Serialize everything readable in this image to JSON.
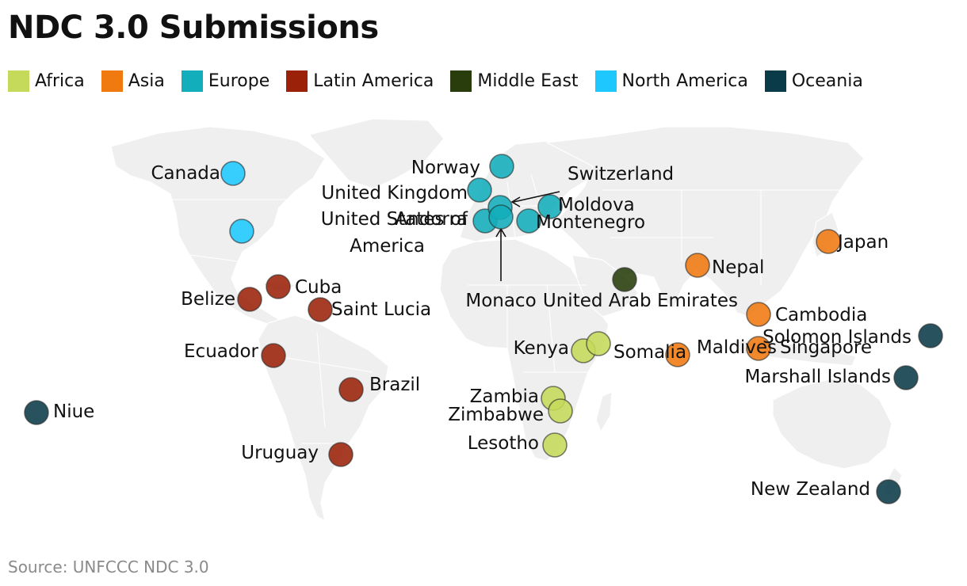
{
  "title": "NDC 3.0 Submissions",
  "source": "Source: UNFCCC NDC 3.0",
  "legend": [
    {
      "label": "Africa",
      "color": "#c5d95a"
    },
    {
      "label": "Asia",
      "color": "#f07a10"
    },
    {
      "label": "Europe",
      "color": "#12aebb"
    },
    {
      "label": "Latin America",
      "color": "#9b2208"
    },
    {
      "label": "Middle East",
      "color": "#283d0b"
    },
    {
      "label": "North America",
      "color": "#1ec8ff"
    },
    {
      "label": "Oceania",
      "color": "#0a3b48"
    }
  ],
  "points": [
    {
      "name": "Canada",
      "region": "North America"
    },
    {
      "name": "United States of America",
      "region": "North America"
    },
    {
      "name": "Belize",
      "region": "Latin America"
    },
    {
      "name": "Cuba",
      "region": "Latin America"
    },
    {
      "name": "Saint Lucia",
      "region": "Latin America"
    },
    {
      "name": "Ecuador",
      "region": "Latin America"
    },
    {
      "name": "Brazil",
      "region": "Latin America"
    },
    {
      "name": "Uruguay",
      "region": "Latin America"
    },
    {
      "name": "Niue",
      "region": "Oceania"
    },
    {
      "name": "Norway",
      "region": "Europe"
    },
    {
      "name": "United Kingdom",
      "region": "Europe"
    },
    {
      "name": "Andorra",
      "region": "Europe"
    },
    {
      "name": "Switzerland",
      "region": "Europe"
    },
    {
      "name": "Monaco",
      "region": "Europe"
    },
    {
      "name": "Moldova",
      "region": "Europe"
    },
    {
      "name": "Montenegro",
      "region": "Europe"
    },
    {
      "name": "United Arab Emirates",
      "region": "Middle East"
    },
    {
      "name": "Kenya",
      "region": "Africa"
    },
    {
      "name": "Somalia",
      "region": "Africa"
    },
    {
      "name": "Zambia",
      "region": "Africa"
    },
    {
      "name": "Zimbabwe",
      "region": "Africa"
    },
    {
      "name": "Lesotho",
      "region": "Africa"
    },
    {
      "name": "Japan",
      "region": "Asia"
    },
    {
      "name": "Nepal",
      "region": "Asia"
    },
    {
      "name": "Cambodia",
      "region": "Asia"
    },
    {
      "name": "Maldives",
      "region": "Asia"
    },
    {
      "name": "Singapore",
      "region": "Asia"
    },
    {
      "name": "Solomon Islands",
      "region": "Oceania"
    },
    {
      "name": "Marshall Islands",
      "region": "Oceania"
    },
    {
      "name": "New Zealand",
      "region": "Oceania"
    }
  ]
}
